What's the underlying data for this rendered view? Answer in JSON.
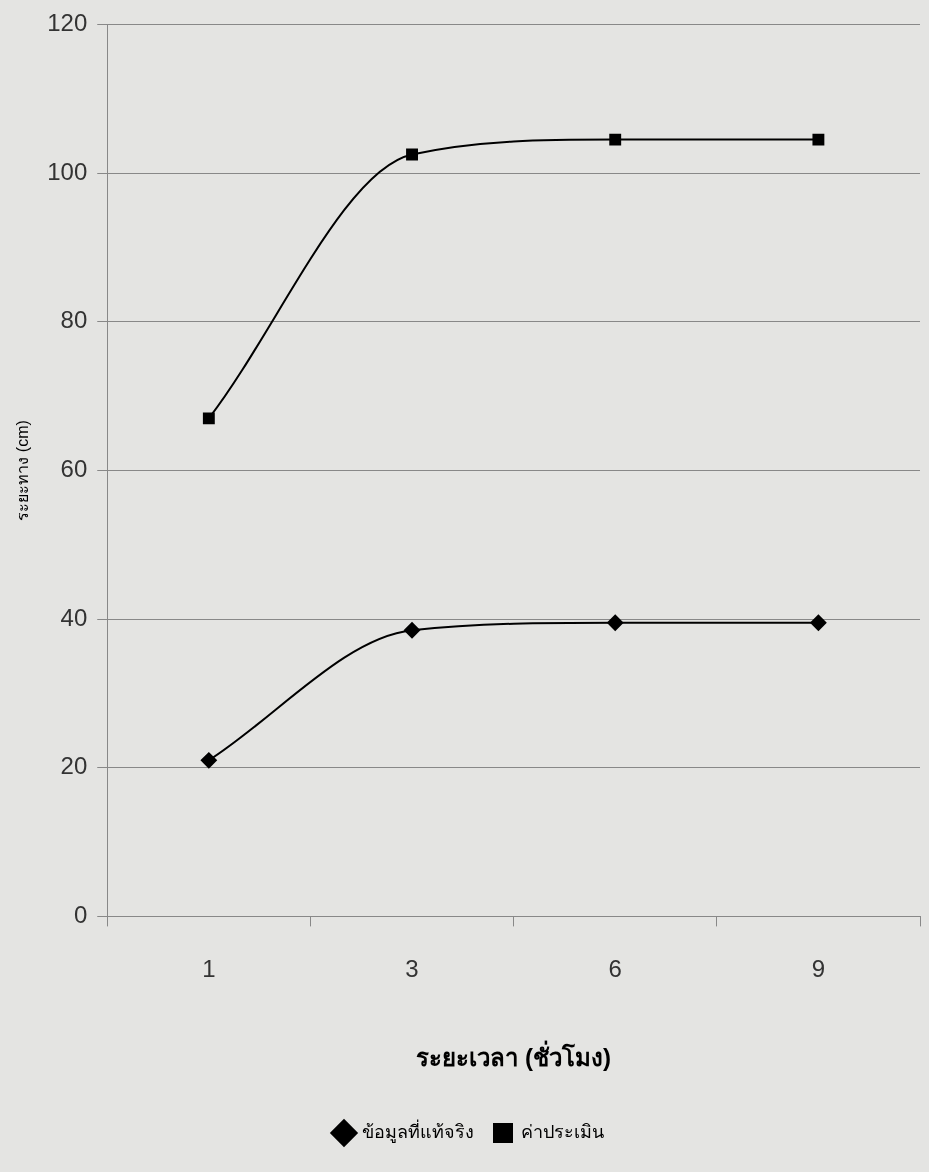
{
  "chart_data": {
    "type": "line",
    "xlabel": "ระยะเวลา (ชั่วโมง)",
    "ylabel": "ระยะทาง (cm)",
    "categories": [
      "1",
      "3",
      "6",
      "9"
    ],
    "series": [
      {
        "name": "ข้อมูลที่แท้จริง",
        "color": "#000000",
        "marker": "diamond",
        "values": [
          21,
          38.5,
          39.5,
          39.5
        ]
      },
      {
        "name": "ค่าประเมิน",
        "color": "#000000",
        "marker": "square",
        "values": [
          67,
          102.5,
          104.5,
          104.5
        ]
      }
    ],
    "ylim": [
      0,
      120
    ],
    "yticks": [
      0,
      20,
      40,
      60,
      80,
      100,
      120
    ],
    "grid": "y",
    "legend": "bottom",
    "line_style": "solid"
  }
}
